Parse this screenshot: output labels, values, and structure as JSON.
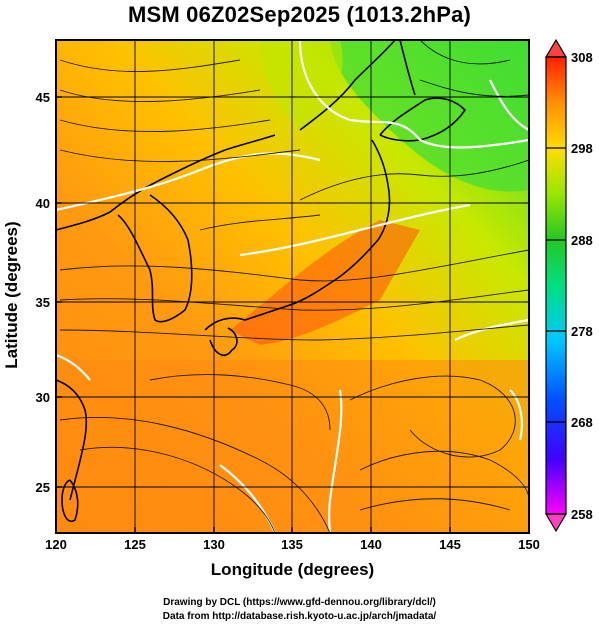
{
  "title": "MSM 06Z02Sep2025 (1013.2hPa)",
  "axes": {
    "xlabel": "Longitude (degrees)",
    "ylabel": "Latitude  (degrees)",
    "xticks": [
      "120",
      "125",
      "130",
      "135",
      "140",
      "145",
      "150"
    ],
    "yticks": [
      "25",
      "30",
      "35",
      "40",
      "45"
    ]
  },
  "colorbar": {
    "ticks": [
      "308",
      "298",
      "288",
      "278",
      "268",
      "258"
    ],
    "min": 258,
    "max": 308,
    "colors": [
      "#ff00ff",
      "#0000ff",
      "#00bfff",
      "#00ff80",
      "#33cc33",
      "#ccff00",
      "#ffcc00",
      "#ff8000",
      "#ff2000"
    ]
  },
  "credits": {
    "line1": "Drawing by DCL (https://www.gfd-dennou.org/library/dcl/)",
    "line2": "Data from http://database.rish.kyoto-u.ac.jp/arch/jmadata/"
  },
  "map": {
    "lon_range": [
      120,
      150
    ],
    "lat_range": [
      22.5,
      47.8
    ],
    "colors": {
      "warm": "#ff7a10",
      "mid": "#ffb000",
      "cool": "#88e000",
      "coolest": "#22cc44",
      "coast": "#000000",
      "isotherm": "#ffffff"
    }
  }
}
